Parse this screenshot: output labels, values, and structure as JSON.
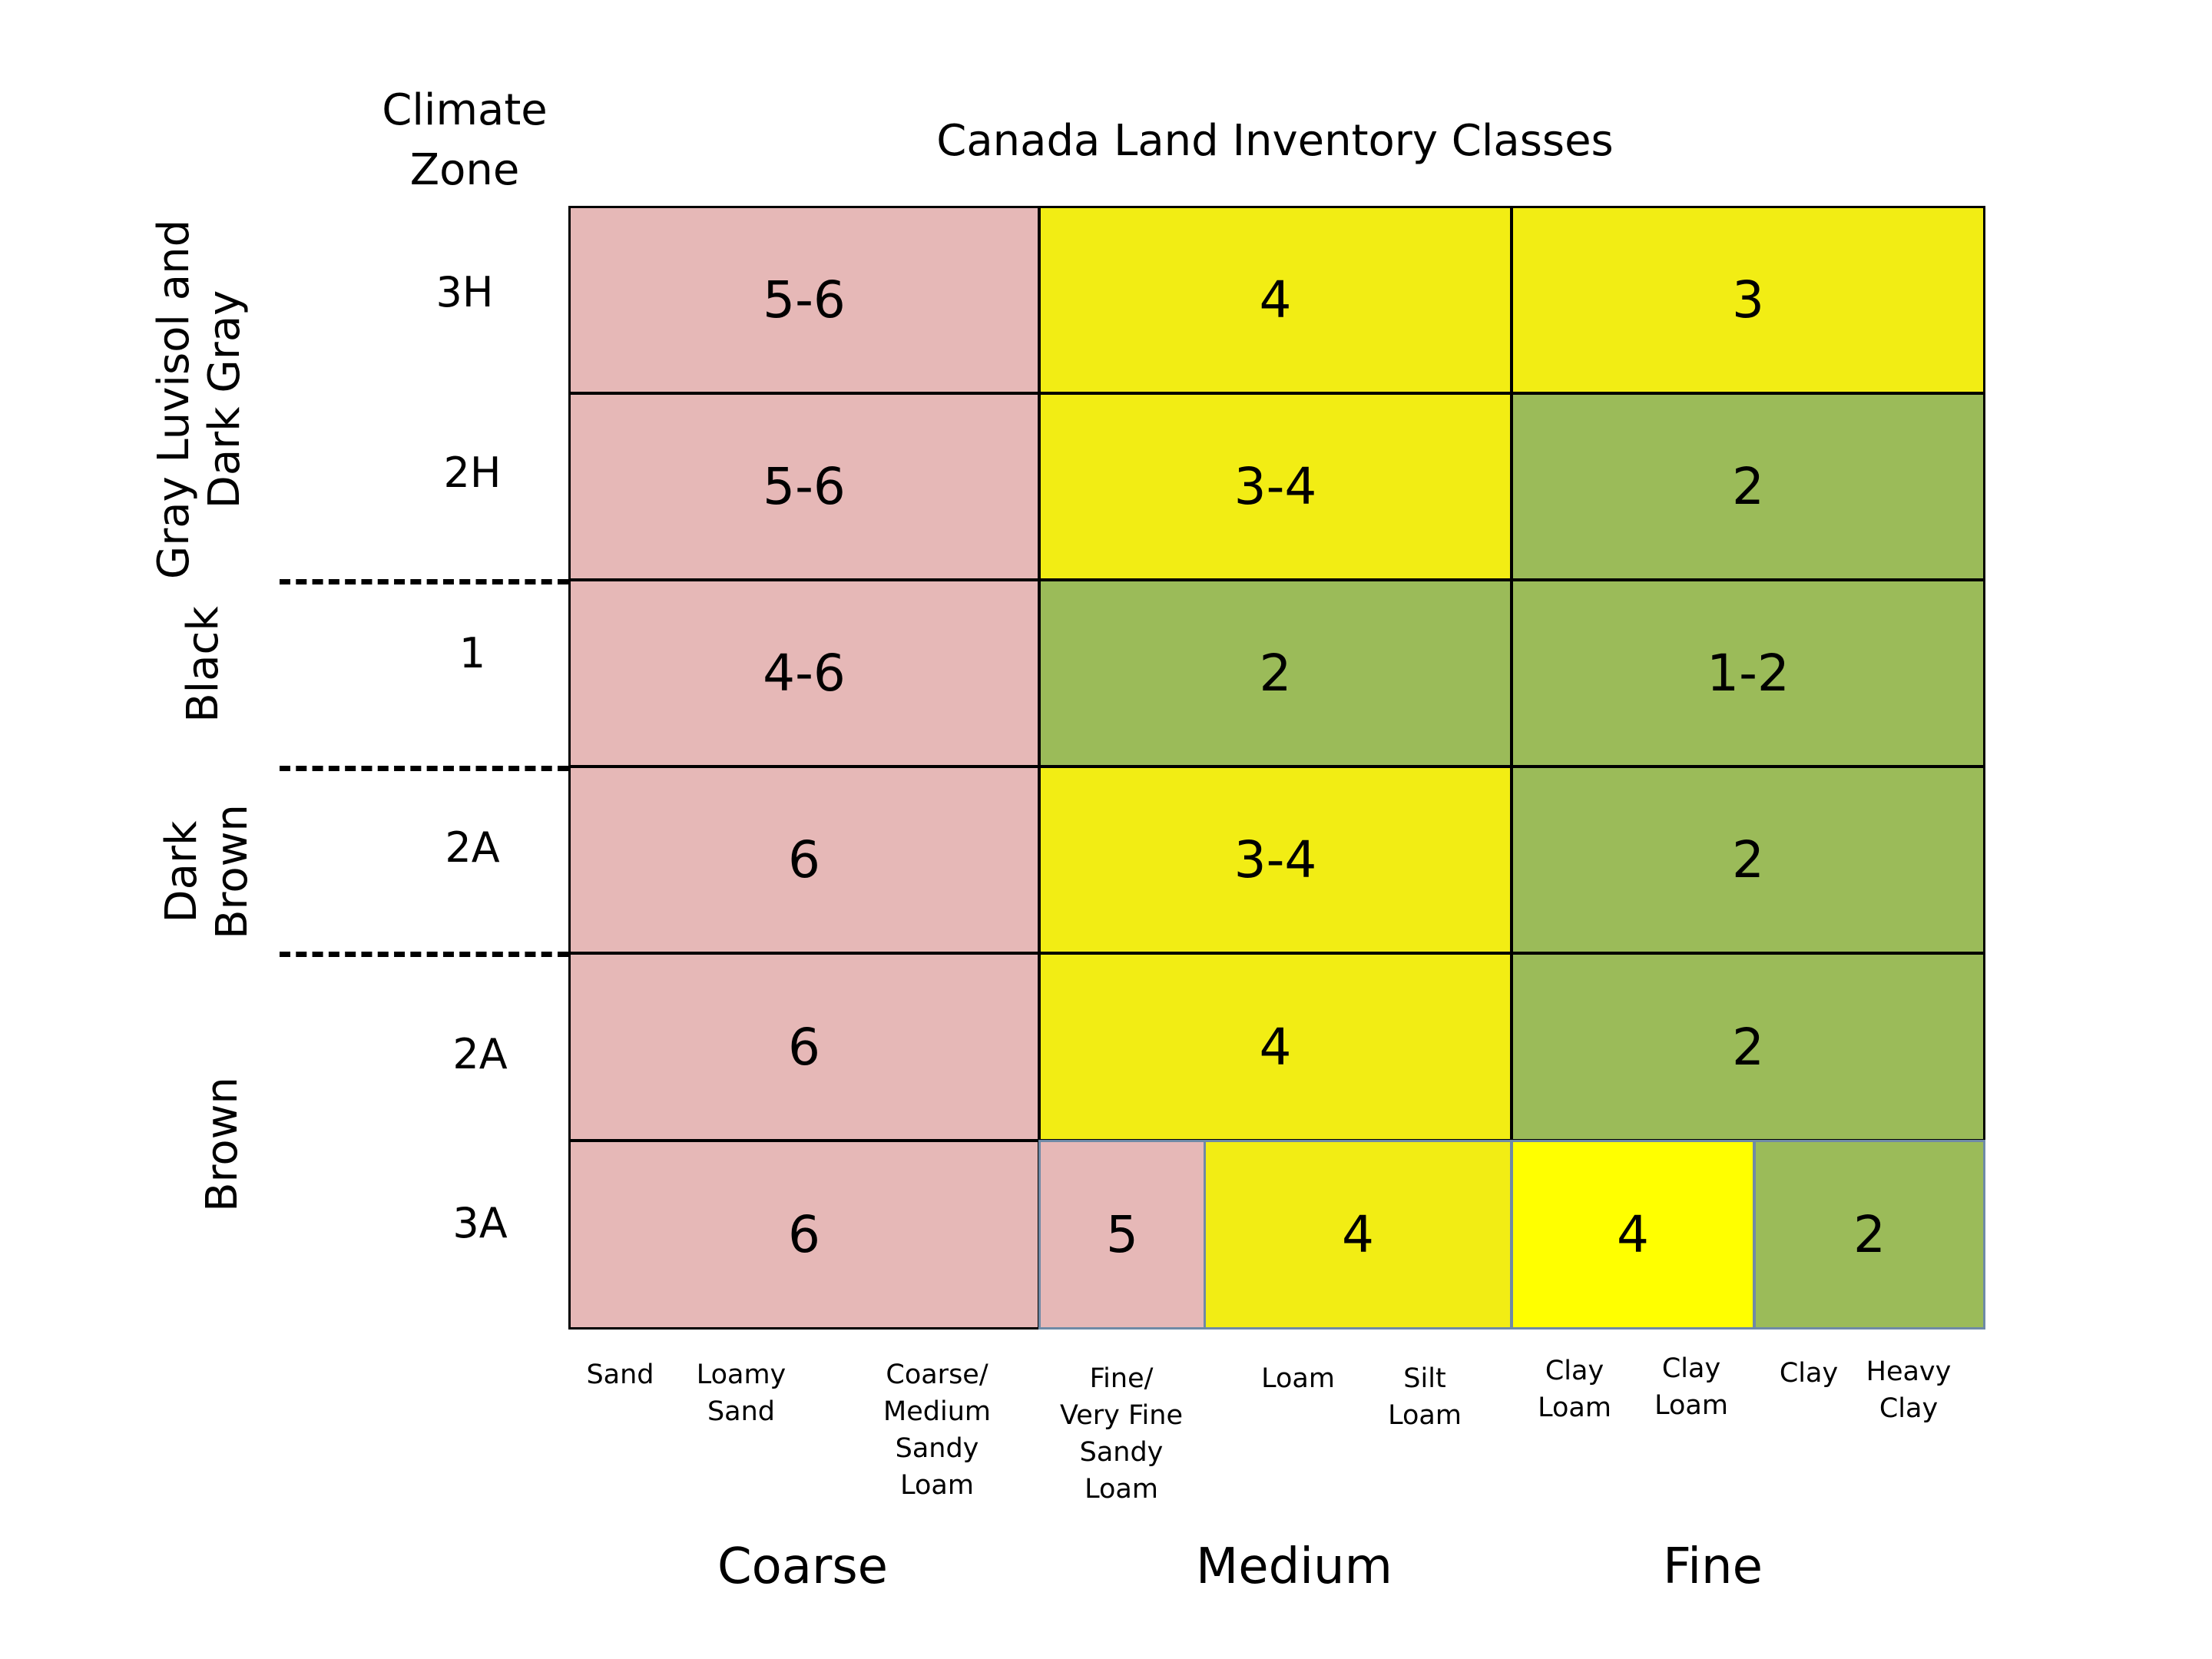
{
  "title": "Canada Land Inventory Classes",
  "climate_zone_header": [
    "Climate",
    "Zone"
  ],
  "soil_zones": {
    "gray": [
      "Gray Luvisol and",
      "Dark Gray"
    ],
    "black": "Black",
    "dark_brown": [
      "Dark",
      "Brown"
    ],
    "brown": "Brown"
  },
  "climate_zones": [
    "3H",
    "2H",
    "1",
    "2A",
    "2A",
    "3A"
  ],
  "rows": [
    {
      "coarse": "5-6",
      "medium": "4",
      "fine": "3"
    },
    {
      "coarse": "5-6",
      "medium": "3-4",
      "fine": "2"
    },
    {
      "coarse": "4-6",
      "medium": "2",
      "fine": "1-2"
    },
    {
      "coarse": "6",
      "medium": "3-4",
      "fine": "2"
    },
    {
      "coarse": "6",
      "medium": "4",
      "fine": "2"
    },
    {
      "coarse": "6",
      "medium_a": "5",
      "medium_b": "4",
      "fine_a": "4",
      "fine_b": "2"
    }
  ],
  "colors": {
    "pink": "#e6b8b7",
    "yellow": "#f2ed14",
    "bright_yellow": "#ffff00",
    "green": "#9bbb59"
  },
  "textures": {
    "sand": [
      "Sand"
    ],
    "loamy_sand": [
      "Loamy",
      "Sand"
    ],
    "coarse_medium_sandy_loam": [
      "Coarse/",
      "Medium",
      "Sandy",
      "Loam"
    ],
    "fine_very_fine_sandy_loam": [
      "Fine/",
      "Very Fine",
      "Sandy",
      "Loam"
    ],
    "loam": [
      "Loam"
    ],
    "silt_loam": [
      "Silt",
      "Loam"
    ],
    "clay_loam_1": [
      "Clay",
      "Loam"
    ],
    "clay_loam_2": [
      "Clay",
      "Loam"
    ],
    "clay": [
      "Clay"
    ],
    "heavy_clay": [
      "Heavy",
      "Clay"
    ]
  },
  "texture_groups": {
    "coarse": "Coarse",
    "medium": "Medium",
    "fine": "Fine"
  }
}
